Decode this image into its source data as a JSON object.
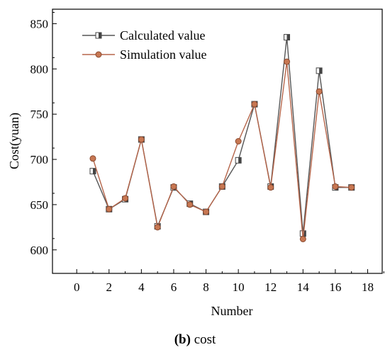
{
  "caption": {
    "bold": "(b)",
    "rest": " cost"
  },
  "chart_data": {
    "type": "line",
    "xlabel": "Number",
    "ylabel": "Cost(yuan)",
    "xlim": [
      -1.5,
      18.9
    ],
    "ylim": [
      574,
      866
    ],
    "x_ticks": [
      0,
      2,
      4,
      6,
      8,
      10,
      12,
      14,
      16,
      18
    ],
    "y_ticks": [
      600,
      650,
      700,
      750,
      800,
      850
    ],
    "grid": false,
    "legend_position": "top-left",
    "x": [
      1,
      2,
      3,
      4,
      5,
      6,
      7,
      8,
      9,
      10,
      11,
      12,
      13,
      14,
      15,
      16,
      17
    ],
    "series": [
      {
        "name": "Calculated value",
        "color": "#555555",
        "marker": "half-filled-square",
        "values": [
          687,
          645,
          656,
          722,
          626,
          669,
          651,
          642,
          670,
          699,
          761,
          670,
          835,
          618,
          798,
          669,
          669
        ]
      },
      {
        "name": "Simulation value",
        "color": "#b5654a",
        "marker": "circle",
        "values": [
          701,
          645,
          657,
          722,
          625,
          670,
          650,
          642,
          670,
          720,
          761,
          669,
          808,
          612,
          775,
          670,
          669
        ]
      }
    ]
  }
}
